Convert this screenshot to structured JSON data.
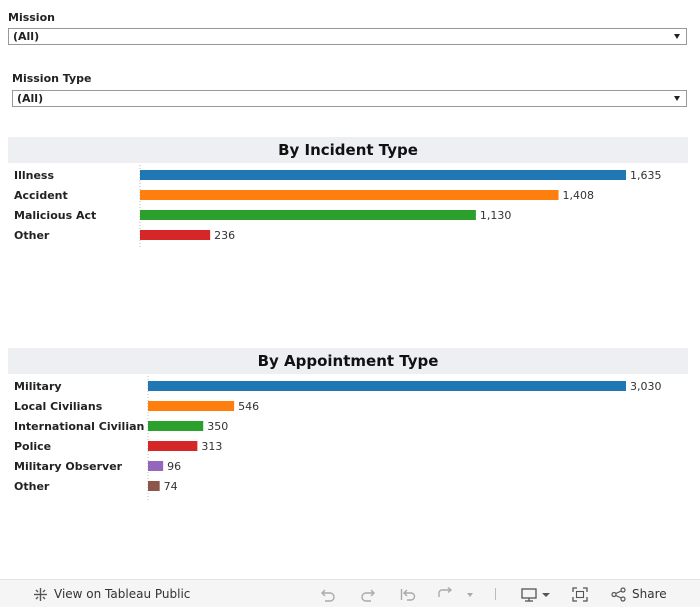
{
  "filters": {
    "mission": {
      "label": "Mission",
      "value": "(All)"
    },
    "mission_type": {
      "label": "Mission Type",
      "value": "(All)"
    }
  },
  "chart_data": [
    {
      "type": "bar",
      "orientation": "horizontal",
      "title": "By Incident Type",
      "categories": [
        "Illness",
        "Accident",
        "Malicious Act",
        "Other"
      ],
      "values": [
        1635,
        1408,
        1130,
        236
      ],
      "value_labels": [
        "1,635",
        "1,408",
        "1,130",
        "236"
      ],
      "colors": [
        "#1f77b4",
        "#ff7f0e",
        "#2ca02c",
        "#d62728"
      ],
      "xlim": [
        0,
        1635
      ],
      "grid": false
    },
    {
      "type": "bar",
      "orientation": "horizontal",
      "title": "By Appointment Type",
      "categories": [
        "Military",
        "Local Civilians",
        "International Civilian",
        "Police",
        "Military Observer",
        "Other"
      ],
      "values": [
        3030,
        546,
        350,
        313,
        96,
        74
      ],
      "value_labels": [
        "3,030",
        "546",
        "350",
        "313",
        "96",
        "74"
      ],
      "colors": [
        "#1f77b4",
        "#ff7f0e",
        "#2ca02c",
        "#d62728",
        "#9467bd",
        "#8c564b"
      ],
      "xlim": [
        0,
        3030
      ],
      "grid": false
    }
  ],
  "toolbar": {
    "view_label": "View on Tableau Public",
    "share_label": "Share",
    "icons": [
      "tableau-logo-icon",
      "undo-icon",
      "redo-icon",
      "revert-icon",
      "refresh-icon",
      "dropdown-icon",
      "download-icon",
      "fullscreen-icon",
      "share-icon"
    ]
  }
}
